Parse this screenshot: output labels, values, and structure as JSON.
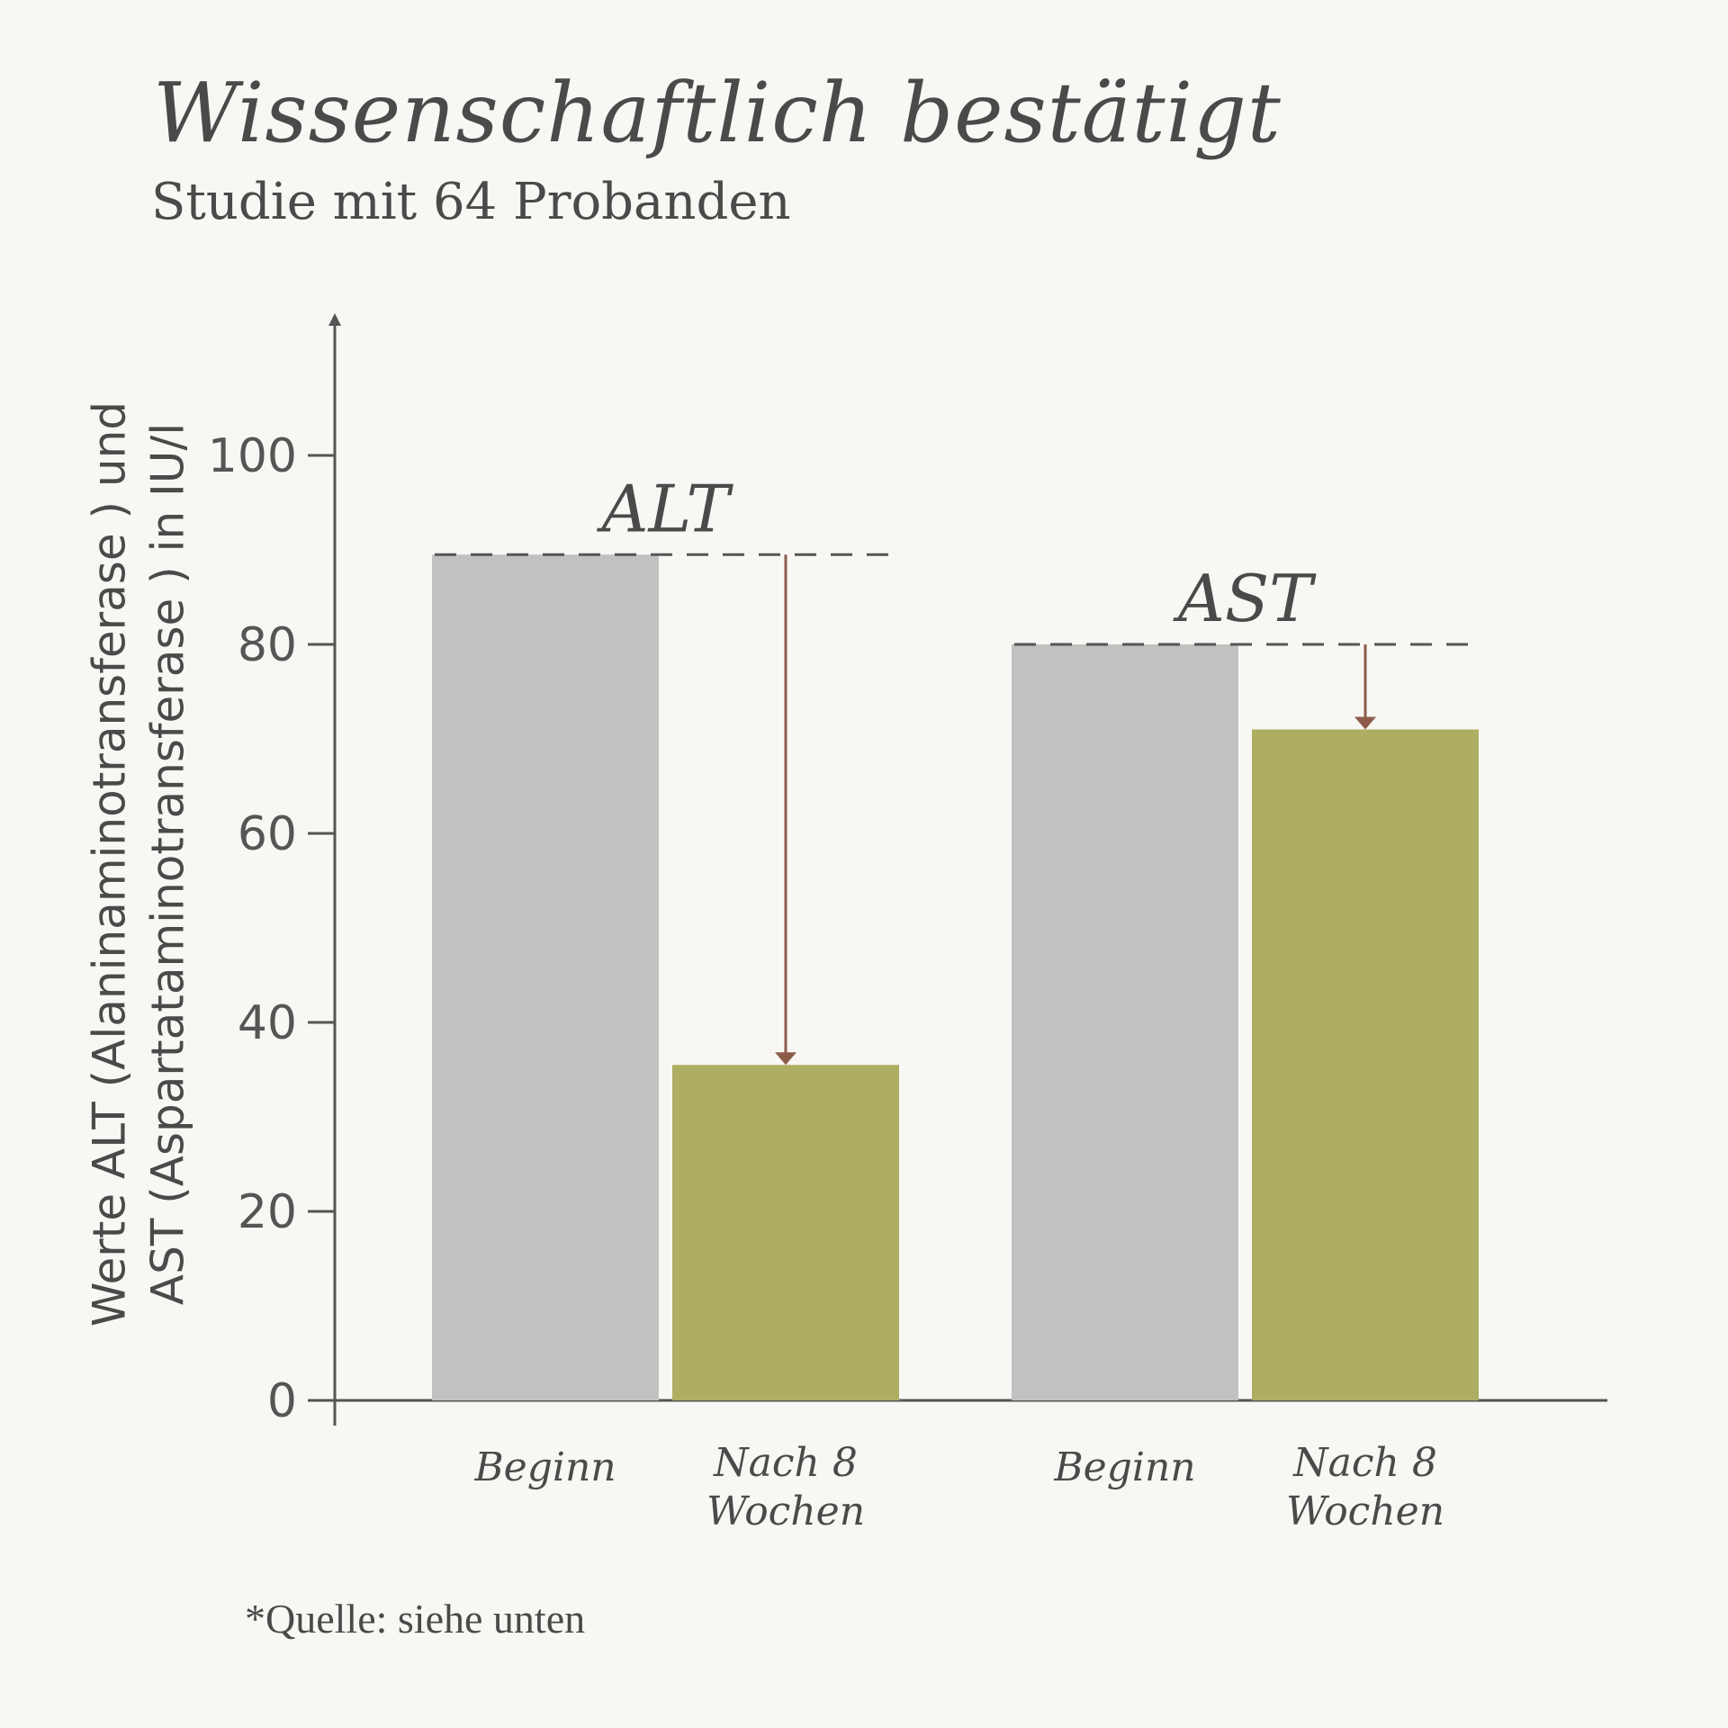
{
  "header": {
    "title": "Wissenschaftlich bestätigt",
    "subtitle": "Studie mit 64 Probanden"
  },
  "footer": {
    "source": "*Quelle: siehe unten"
  },
  "colors": {
    "baseline_bar": "#c1c1c1",
    "after_bar": "#adae61",
    "arrow": "#8d5c4b",
    "axis": "#555555",
    "background": "#f8f7f3"
  },
  "chart_data": {
    "type": "bar",
    "ylabel_lines": [
      "Werte ALT (Alaninaminotransferase ) und",
      "AST (Aspartataminotransferase ) in IU/l"
    ],
    "ylim": [
      0,
      100
    ],
    "yticks": [
      "0",
      "20",
      "40",
      "60",
      "80",
      "100"
    ],
    "grid": false,
    "groups": [
      {
        "name": "ALT",
        "bars": [
          {
            "label_lines": [
              "Beginn"
            ],
            "value": 89.5,
            "kind": "baseline"
          },
          {
            "label_lines": [
              "Nach 8",
              "Wochen"
            ],
            "value": 35.5,
            "kind": "after"
          }
        ]
      },
      {
        "name": "AST",
        "bars": [
          {
            "label_lines": [
              "Beginn"
            ],
            "value": 80,
            "kind": "baseline"
          },
          {
            "label_lines": [
              "Nach 8",
              "Wochen"
            ],
            "value": 71,
            "kind": "after"
          }
        ]
      }
    ]
  }
}
